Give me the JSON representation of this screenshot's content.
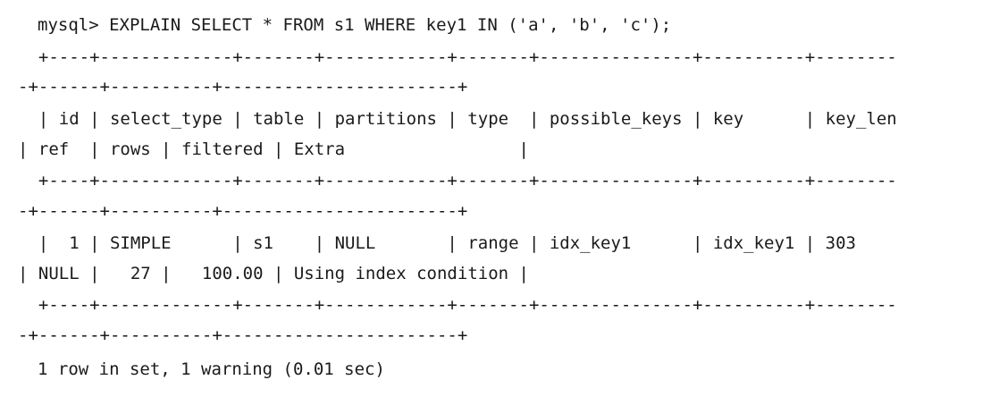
{
  "terminal": {
    "prompt": "mysql> ",
    "command": "EXPLAIN SELECT * FROM s1 WHERE key1 IN ('a', 'b', 'c');",
    "border_top_a": "  +----+-------------+-------+------------+-------+---------------+----------+--------",
    "border_top_b": "-+------+----------+-----------------------+",
    "header_a": "  | id | select_type | table | partitions | type  | possible_keys | key      | key_len",
    "header_b": "| ref  | rows | filtered | Extra                 |",
    "border_mid_a": "  +----+-------------+-------+------------+-------+---------------+----------+--------",
    "border_mid_b": "-+------+----------+-----------------------+",
    "row_a": "  |  1 | SIMPLE      | s1    | NULL       | range | idx_key1      | idx_key1 | 303",
    "row_b": "| NULL |   27 |   100.00 | Using index condition |",
    "border_bot_a": "  +----+-------------+-------+------------+-------+---------------+----------+--------",
    "border_bot_b": "-+------+----------+-----------------------+",
    "result": "1 row in set, 1 warning (0.01 sec)"
  }
}
